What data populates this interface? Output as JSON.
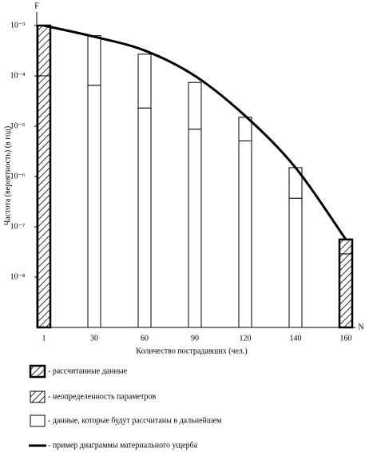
{
  "chart_data": {
    "type": "bar",
    "title_y": "Частота (вероятность) (в год)",
    "title_x": "Количество пострадавших (чел.)",
    "y_axis_letter": "F",
    "x_axis_letter": "N",
    "categories": [
      "1",
      "30",
      "60",
      "90",
      "120",
      "140",
      "160"
    ],
    "bar_top": [
      0.001,
      0.00063,
      0.00027,
      7.4e-05,
      1.5e-05,
      1.5e-06,
      5.6e-08
    ],
    "bar_split": [
      0.0001,
      6.5e-05,
      2.3e-05,
      8.7e-06,
      5.1e-06,
      3.7e-07,
      2.9e-08
    ],
    "hatched": [
      true,
      false,
      false,
      false,
      false,
      false,
      true
    ],
    "curve": {
      "color": "#000000",
      "values": [
        0.001,
        0.0006,
        0.00032,
        0.0001,
        1.6e-05,
        1.5e-06,
        5.6e-08
      ]
    },
    "log_y": true,
    "ylim": [
      1e-09,
      0.001
    ],
    "yticks": [
      {
        "value": 0.001,
        "label": "10⁻³"
      },
      {
        "value": 0.0001,
        "label": "10⁻⁴"
      },
      {
        "value": 1e-05,
        "label": "10⁻⁵"
      },
      {
        "value": 1e-06,
        "label": "10⁻⁶"
      },
      {
        "value": 1e-07,
        "label": "10⁻⁷"
      },
      {
        "value": 1e-08,
        "label": "10⁻⁸"
      }
    ],
    "legend": [
      "- рассчитанные данные",
      "- неопределенность параметров",
      "- данные, которые будут рассчитаны в дальнейшем",
      "- пример диаграммы материального ущерба"
    ]
  }
}
